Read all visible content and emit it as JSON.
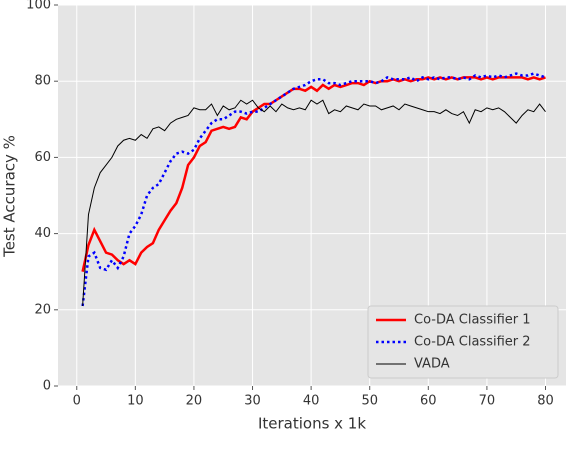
{
  "chart_data": {
    "type": "line",
    "xlabel": "Iterations x 1k",
    "ylabel": "Test Accuracy %",
    "x": [
      1,
      2,
      3,
      4,
      5,
      6,
      7,
      8,
      9,
      10,
      11,
      12,
      13,
      14,
      15,
      16,
      17,
      18,
      19,
      20,
      21,
      22,
      23,
      24,
      25,
      26,
      27,
      28,
      29,
      30,
      31,
      32,
      33,
      34,
      35,
      36,
      37,
      38,
      39,
      40,
      41,
      42,
      43,
      44,
      45,
      46,
      47,
      48,
      49,
      50,
      51,
      52,
      53,
      54,
      55,
      56,
      57,
      58,
      59,
      60,
      61,
      62,
      63,
      64,
      65,
      66,
      67,
      68,
      69,
      70,
      71,
      72,
      73,
      74,
      75,
      76,
      77,
      78,
      79,
      80
    ],
    "series": [
      {
        "name": "Co-DA Classifier 1",
        "color": "#ff0000",
        "style": "solid",
        "width": 2.5,
        "values": [
          30,
          37,
          41,
          38,
          35,
          34.5,
          33,
          32,
          33,
          32,
          35,
          36.5,
          37.5,
          41,
          43.5,
          46,
          48,
          52,
          58,
          60,
          63,
          64,
          67,
          67.5,
          68,
          67.5,
          68,
          70.5,
          70,
          72,
          73,
          74,
          74,
          75,
          76,
          77,
          78,
          78,
          77.5,
          78.5,
          77.5,
          79,
          78,
          79,
          78.5,
          79,
          79.5,
          79.5,
          79,
          80,
          79.5,
          80,
          80,
          80.5,
          80,
          80.5,
          80,
          80.5,
          80.5,
          81,
          80.5,
          81,
          80.5,
          81,
          80.5,
          81,
          81,
          81,
          80.5,
          81,
          80.5,
          81,
          81,
          81,
          81,
          81,
          80.5,
          81,
          80.5,
          81
        ]
      },
      {
        "name": "Co-DA Classifier 2",
        "color": "#0000ff",
        "style": "dotted",
        "width": 2.5,
        "values": [
          21,
          34,
          35,
          31,
          30.5,
          33,
          31,
          34,
          40,
          42,
          45,
          50,
          52,
          53,
          56,
          59,
          61,
          61.5,
          61,
          62,
          65,
          67,
          69,
          70,
          70,
          71,
          72,
          72,
          71.5,
          72,
          72,
          73,
          74,
          75,
          76,
          77,
          78,
          78.5,
          79,
          80,
          80.5,
          80.5,
          79.5,
          79.5,
          79,
          79.5,
          80,
          80,
          80,
          80,
          79.5,
          80,
          81,
          80.5,
          80.5,
          80.5,
          81,
          80,
          81,
          80.5,
          81,
          80.5,
          81,
          81,
          80.5,
          81,
          80.5,
          81.5,
          81,
          81.5,
          81,
          81.5,
          81,
          81.5,
          82,
          81.5,
          81.5,
          82,
          81.5,
          81
        ]
      },
      {
        "name": "VADA",
        "color": "#000000",
        "style": "solid",
        "width": 1,
        "values": [
          21,
          45,
          52,
          56,
          58,
          60,
          63,
          64.5,
          65,
          64.5,
          66,
          65,
          67.5,
          68,
          67,
          69,
          70,
          70.5,
          71,
          73,
          72.5,
          72.5,
          74,
          71,
          73.5,
          72.5,
          73,
          75,
          74,
          75,
          73,
          72,
          73.5,
          72,
          74,
          73,
          72.5,
          73,
          72.5,
          75,
          74,
          75,
          71.5,
          72.5,
          72,
          73.5,
          73,
          72.5,
          74,
          73.5,
          73.5,
          72.5,
          73,
          73.5,
          72.5,
          74,
          73.5,
          73,
          72.5,
          72,
          72,
          71.5,
          72.5,
          71.5,
          71,
          72,
          69,
          72.5,
          72,
          73,
          72.5,
          73,
          72,
          70.5,
          69,
          71,
          72.5,
          72,
          74,
          72
        ]
      }
    ],
    "xlim": [
      -3.2,
      83.5
    ],
    "xticks": [
      0,
      10,
      20,
      30,
      40,
      50,
      60,
      70,
      80
    ],
    "ylim": [
      0,
      100
    ],
    "yticks": [
      0,
      20,
      40,
      60,
      80,
      100
    ],
    "grid": true,
    "legend": "lower right"
  }
}
